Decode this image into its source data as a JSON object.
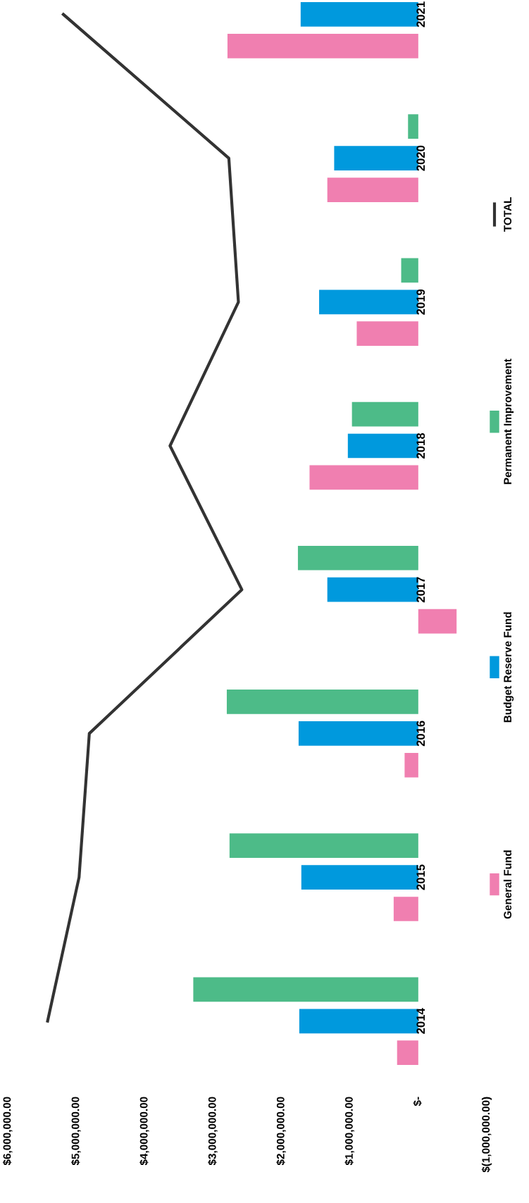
{
  "chart_data": {
    "type": "bar",
    "orientation": "horizontal",
    "categories": [
      "2021",
      "2020",
      "2019",
      "2018",
      "2017",
      "2016",
      "2015",
      "2014"
    ],
    "series": [
      {
        "name": "General Fund",
        "color": "#f07fb0",
        "values": [
          2790000,
          1330000,
          900000,
          1590000,
          -560000,
          200000,
          360000,
          310000
        ]
      },
      {
        "name": "Budget Reserve Fund",
        "color": "#0099dd",
        "values": [
          1720000,
          1230000,
          1450000,
          1030000,
          1330000,
          1750000,
          1710000,
          1740000
        ]
      },
      {
        "name": "Permanent Improvement",
        "color": "#4dbb88",
        "values": [
          null,
          150000,
          250000,
          970000,
          1760000,
          2800000,
          2760000,
          3290000
        ]
      },
      {
        "name": "TOTAL",
        "type": "line",
        "color": "#333333",
        "values": [
          5190000,
          2770000,
          2630000,
          3630000,
          2580000,
          4810000,
          4960000,
          5420000
        ]
      }
    ],
    "xlim": [
      6000000,
      -1000000
    ],
    "xticks": [
      {
        "value": 6000000,
        "label": "$6,000,000.00"
      },
      {
        "value": 5000000,
        "label": "$5,000,000.00"
      },
      {
        "value": 4000000,
        "label": "$4,000,000.00"
      },
      {
        "value": 3000000,
        "label": "$3,000,000.00"
      },
      {
        "value": 2000000,
        "label": "$2,000,000.00"
      },
      {
        "value": 1000000,
        "label": "$1,000,000.00"
      },
      {
        "value": 0,
        "label": "$-"
      },
      {
        "value": -1000000,
        "label": "$(1,000,000.00)"
      }
    ],
    "legend": "right",
    "grid": false,
    "marker": "none",
    "line_style": "solid"
  }
}
